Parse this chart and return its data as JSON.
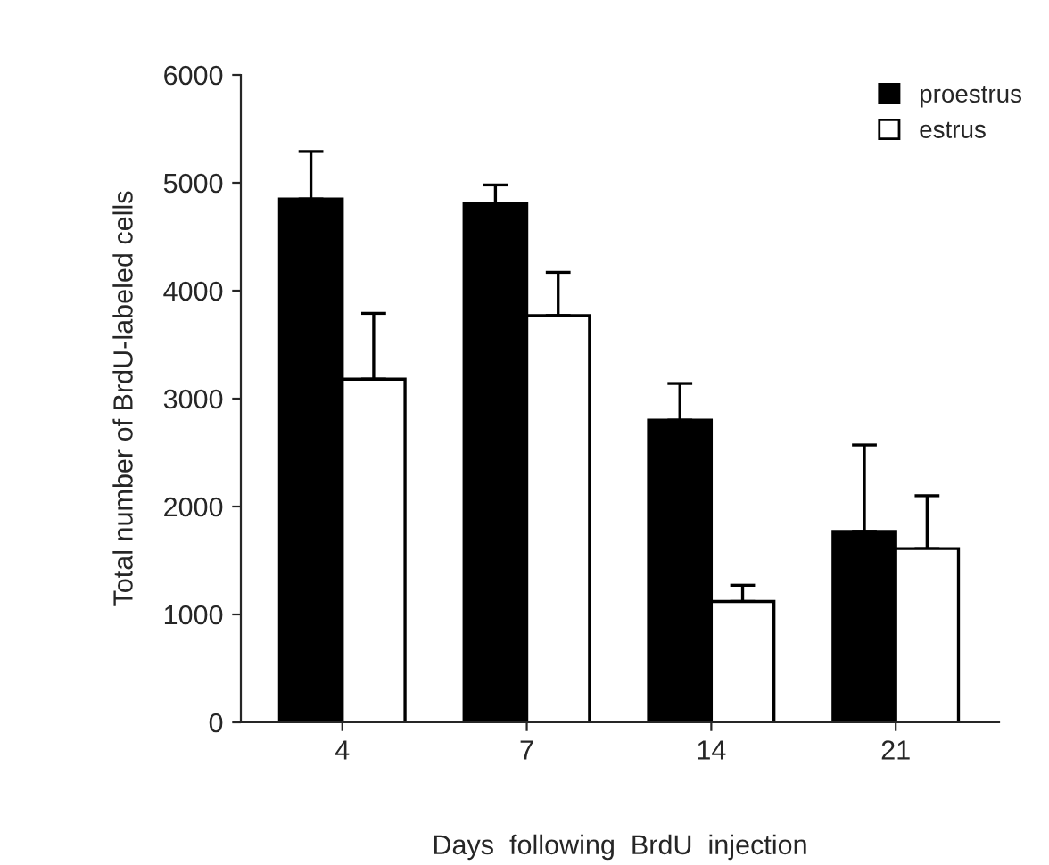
{
  "chart_data": {
    "type": "bar",
    "xlabel": "Days  following  BrdU  injection",
    "ylabel": "Total number of BrdU-labeled cells",
    "categories": [
      "4",
      "7",
      "14",
      "21"
    ],
    "series": [
      {
        "name": "proestrus",
        "color": "#000000",
        "values": [
          4850,
          4810,
          2800,
          1770
        ],
        "errors": [
          [
            4850,
            5290
          ],
          [
            4810,
            4980
          ],
          [
            2800,
            3140
          ],
          [
            1770,
            2570
          ]
        ]
      },
      {
        "name": "estrus",
        "color": "#ffffff",
        "values": [
          3180,
          3770,
          1120,
          1610
        ],
        "errors": [
          [
            3180,
            3790
          ],
          [
            3770,
            4170
          ],
          [
            1120,
            1270
          ],
          [
            1610,
            2100
          ]
        ]
      }
    ],
    "ylim": [
      0,
      6000
    ],
    "yticks": [
      0,
      1000,
      2000,
      3000,
      4000,
      5000,
      6000
    ],
    "grid": false,
    "legend": "top right"
  }
}
